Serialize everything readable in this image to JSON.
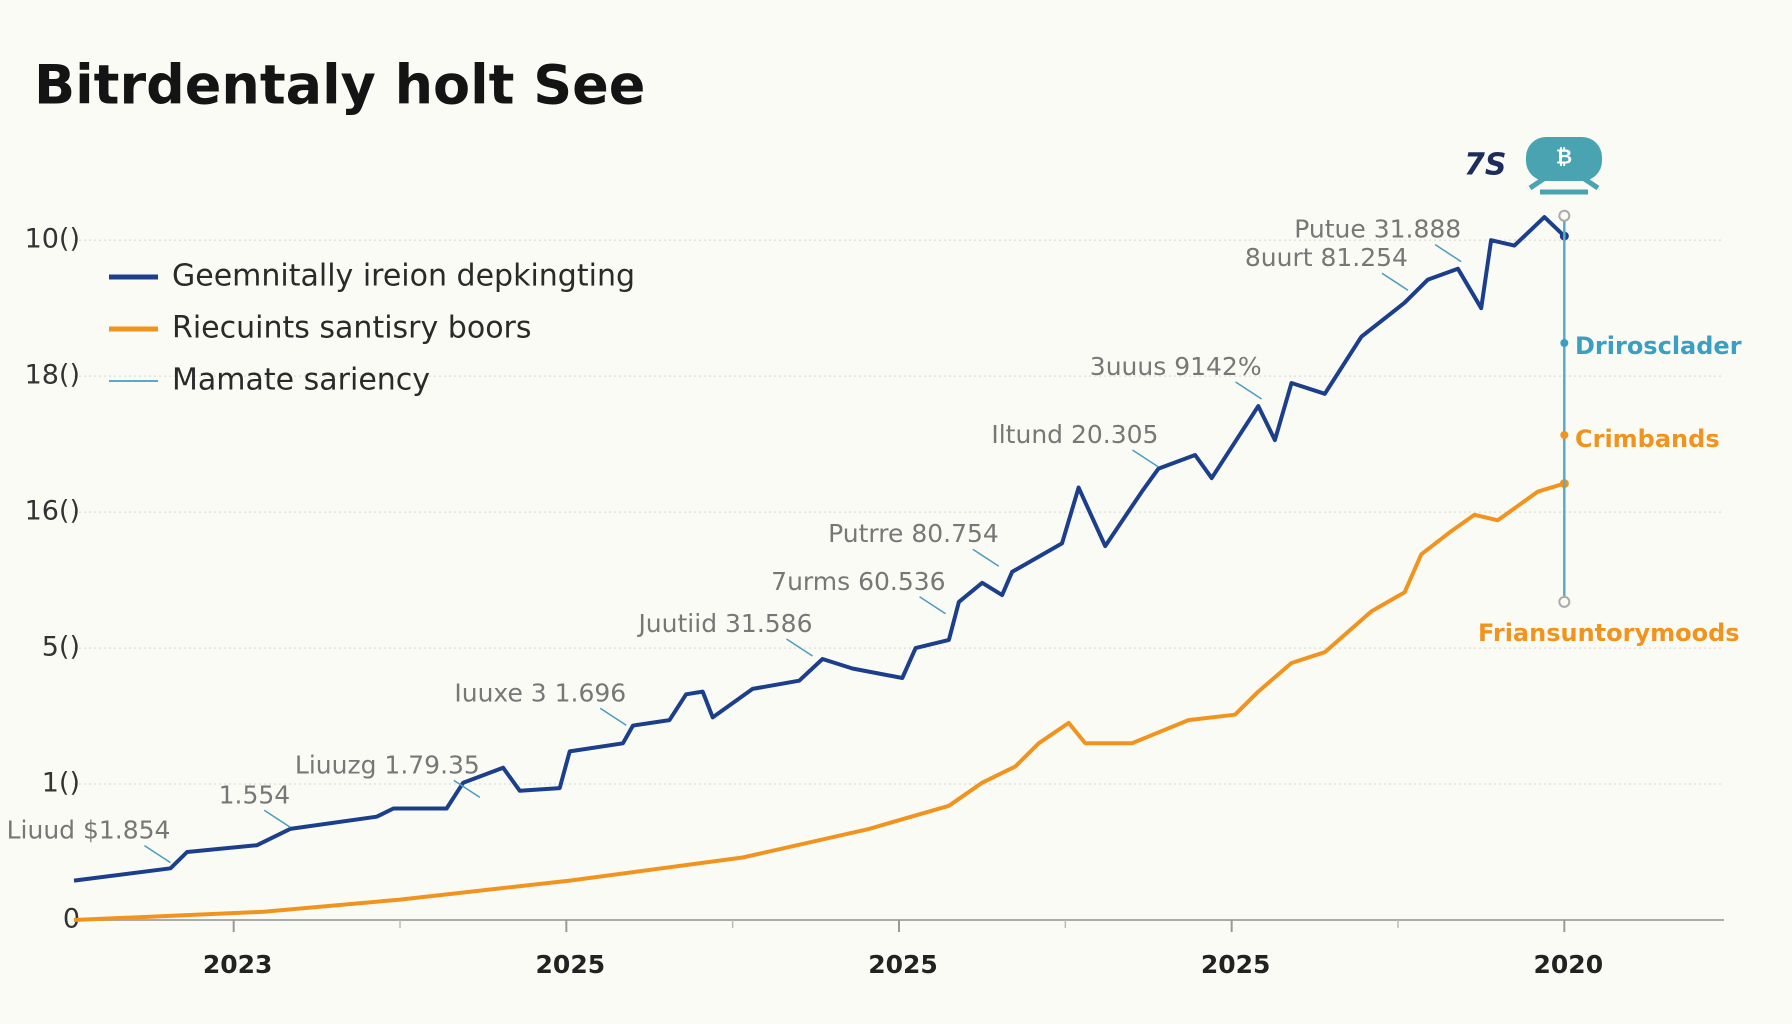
{
  "chart_data": {
    "type": "line",
    "title": "Bitrdentaly holt See",
    "badge": "7S",
    "xlim": [
      -0.48,
      4.48
    ],
    "ylim": [
      0,
      5.2
    ],
    "xticks": [
      {
        "value": 0,
        "label": "2023"
      },
      {
        "value": 1,
        "label": "2025"
      },
      {
        "value": 2,
        "label": "2025"
      },
      {
        "value": 3,
        "label": "2025"
      },
      {
        "value": 4,
        "label": "2020"
      }
    ],
    "yticks": [
      {
        "value": 0,
        "label": "0"
      },
      {
        "value": 1,
        "label": "1()"
      },
      {
        "value": 2,
        "label": "5()"
      },
      {
        "value": 3,
        "label": "16()"
      },
      {
        "value": 4,
        "label": "18()"
      },
      {
        "value": 5,
        "label": "10()"
      }
    ],
    "grid": true,
    "series": [
      {
        "name": "Geemnitally ireion depkingting",
        "color": "#1c3f8c",
        "x": [
          -0.48,
          -0.19,
          -0.14,
          0.07,
          0.17,
          0.43,
          0.48,
          0.64,
          0.69,
          0.81,
          0.86,
          0.98,
          1.01,
          1.17,
          1.2,
          1.31,
          1.36,
          1.41,
          1.44,
          1.56,
          1.7,
          1.77,
          1.86,
          2.01,
          2.05,
          2.15,
          2.18,
          2.25,
          2.31,
          2.34,
          2.49,
          2.54,
          2.62,
          2.73,
          2.78,
          2.89,
          2.94,
          3.08,
          3.13,
          3.18,
          3.28,
          3.39,
          3.52,
          3.59,
          3.68,
          3.75,
          3.78,
          3.85,
          3.94,
          4.0
        ],
        "values": [
          0.29,
          0.38,
          0.5,
          0.55,
          0.67,
          0.76,
          0.82,
          0.82,
          1.01,
          1.12,
          0.95,
          0.97,
          1.24,
          1.3,
          1.43,
          1.47,
          1.66,
          1.68,
          1.49,
          1.7,
          1.76,
          1.92,
          1.85,
          1.78,
          2.0,
          2.06,
          2.34,
          2.48,
          2.39,
          2.56,
          2.77,
          3.18,
          2.75,
          3.15,
          3.32,
          3.42,
          3.25,
          3.78,
          3.53,
          3.95,
          3.87,
          4.29,
          4.54,
          4.71,
          4.79,
          4.5,
          5.0,
          4.96,
          5.17,
          5.03
        ]
      },
      {
        "name": "Riecuints santisry boors",
        "color": "#f0941f",
        "x": [
          -0.48,
          0.09,
          0.5,
          1.01,
          1.53,
          1.91,
          2.15,
          2.25,
          2.35,
          2.42,
          2.51,
          2.56,
          2.7,
          2.87,
          3.01,
          3.08,
          3.18,
          3.28,
          3.42,
          3.52,
          3.57,
          3.66,
          3.73,
          3.8,
          3.92,
          4.0
        ],
        "values": [
          0,
          0.06,
          0.15,
          0.29,
          0.46,
          0.67,
          0.84,
          1.01,
          1.13,
          1.3,
          1.45,
          1.3,
          1.3,
          1.47,
          1.51,
          1.68,
          1.89,
          1.97,
          2.27,
          2.41,
          2.69,
          2.86,
          2.98,
          2.94,
          3.15,
          3.21
        ]
      },
      {
        "name": "Mamate sariency",
        "color": "#5aa9c9",
        "x": [
          4.0,
          4.0
        ],
        "values": [
          2.34,
          5.18
        ]
      }
    ],
    "annotations": [
      {
        "text": "Liuud $1.854",
        "x": -0.19,
        "y": 0.4
      },
      {
        "text": "1.554",
        "x": 0.17,
        "y": 0.66
      },
      {
        "text": "Liuuzg 1.79.35",
        "x": 0.74,
        "y": 0.88
      },
      {
        "text": "Iuuxe 3 1.696",
        "x": 1.18,
        "y": 1.41
      },
      {
        "text": "Juutiid 31.586",
        "x": 1.74,
        "y": 1.92
      },
      {
        "text": "7urms 60.536",
        "x": 2.14,
        "y": 2.23
      },
      {
        "text": "Putrre 80.754",
        "x": 2.3,
        "y": 2.58
      },
      {
        "text": "Iltund 20.305",
        "x": 2.78,
        "y": 3.31
      },
      {
        "text": "3uuus 9142%",
        "x": 3.09,
        "y": 3.81
      },
      {
        "text": "8uurt 81.254",
        "x": 3.53,
        "y": 4.61
      },
      {
        "text": "Putue 31.888",
        "x": 3.69,
        "y": 4.82
      }
    ],
    "end_labels": [
      {
        "text": "Drirosclader",
        "color": "#3a9fc0"
      },
      {
        "text": "Crimbands",
        "color": "#f0941f"
      },
      {
        "text": "Friansuntorymoods",
        "color": "#f0941f"
      }
    ]
  }
}
